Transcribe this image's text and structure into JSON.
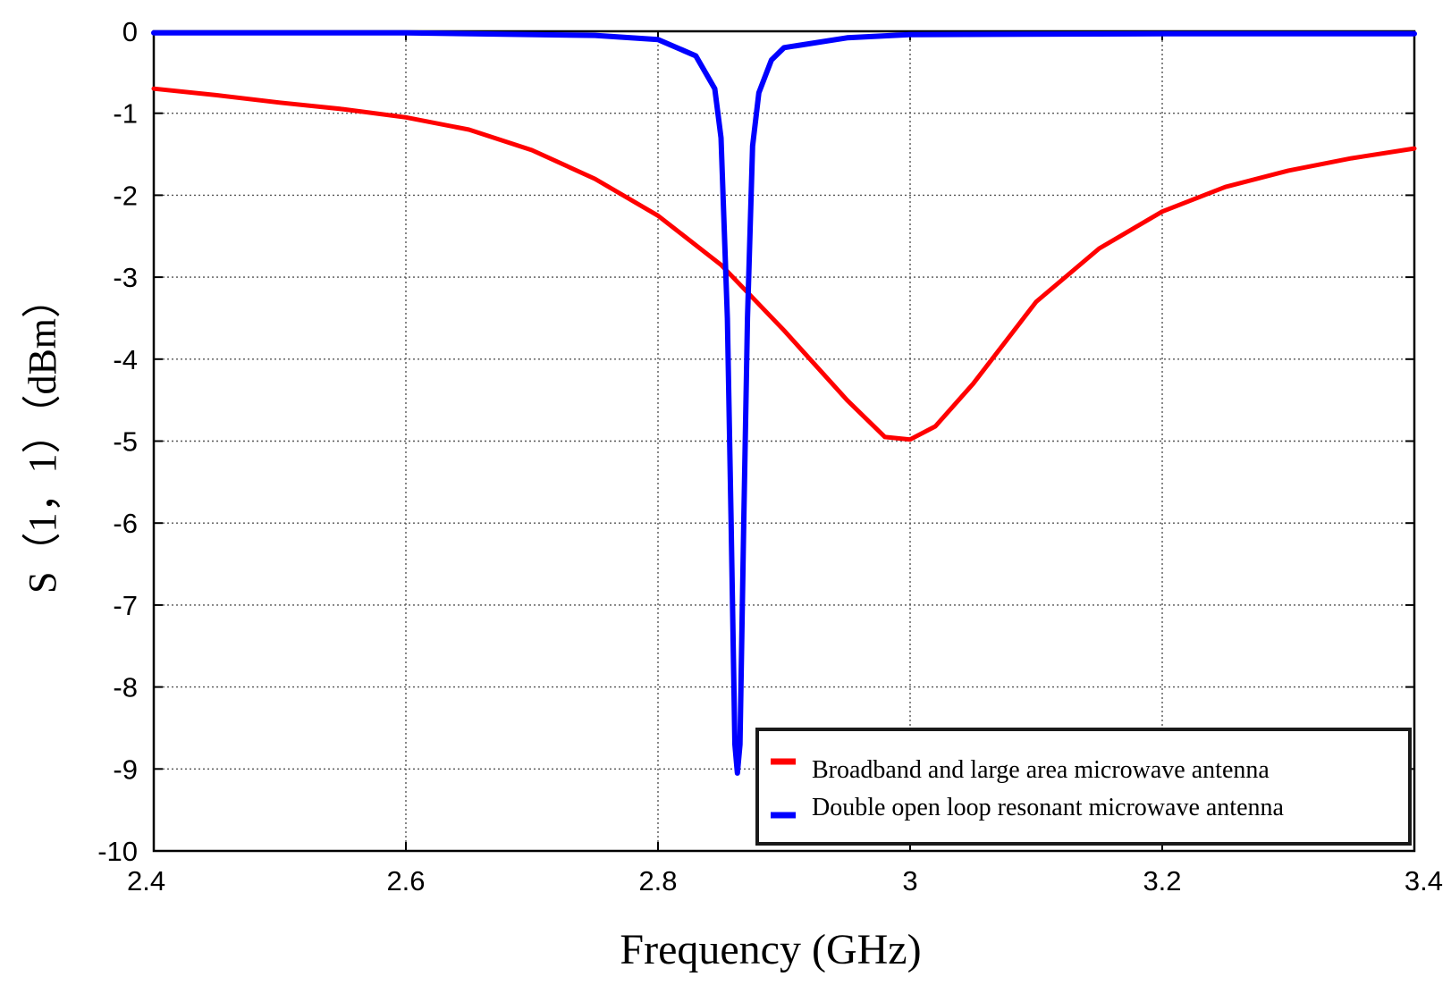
{
  "chart_data": {
    "type": "line",
    "title": "",
    "xlabel": "Frequency (GHz)",
    "ylabel": "S（1，1）（dBm）",
    "xlim": [
      2.4,
      3.4
    ],
    "ylim": [
      -10,
      0
    ],
    "xticks": [
      2.4,
      2.6,
      2.8,
      3.0,
      3.2,
      3.4
    ],
    "xtick_labels": [
      "2.4",
      "2.6",
      "2.8",
      "3",
      "3.2",
      "3.4"
    ],
    "yticks": [
      0,
      -1,
      -2,
      -3,
      -4,
      -5,
      -6,
      -7,
      -8,
      -9,
      -10
    ],
    "ytick_labels": [
      "0",
      "-1",
      "-2",
      "-3",
      "-4",
      "-5",
      "-6",
      "-7",
      "-8",
      "-9",
      "-10"
    ],
    "grid": true,
    "legend_position": "bottom-right",
    "series": [
      {
        "name": "Broadband and large area microwave antenna",
        "color": "#ff0000",
        "x": [
          2.4,
          2.45,
          2.5,
          2.55,
          2.6,
          2.65,
          2.7,
          2.75,
          2.8,
          2.85,
          2.9,
          2.95,
          2.98,
          3.0,
          3.02,
          3.05,
          3.1,
          3.15,
          3.2,
          3.25,
          3.3,
          3.35,
          3.4
        ],
        "y": [
          -0.7,
          -0.78,
          -0.87,
          -0.95,
          -1.05,
          -1.2,
          -1.45,
          -1.8,
          -2.25,
          -2.85,
          -3.65,
          -4.5,
          -4.95,
          -4.98,
          -4.82,
          -4.3,
          -3.3,
          -2.65,
          -2.2,
          -1.9,
          -1.7,
          -1.55,
          -1.43
        ]
      },
      {
        "name": "Double open loop resonant microwave antenna",
        "color": "#0000ff",
        "x": [
          2.4,
          2.6,
          2.75,
          2.8,
          2.83,
          2.845,
          2.85,
          2.855,
          2.858,
          2.861,
          2.863,
          2.865,
          2.868,
          2.871,
          2.875,
          2.88,
          2.89,
          2.9,
          2.95,
          3.0,
          3.2,
          3.4
        ],
        "y": [
          -0.02,
          -0.02,
          -0.05,
          -0.1,
          -0.3,
          -0.7,
          -1.3,
          -3.5,
          -6.0,
          -8.7,
          -9.05,
          -8.7,
          -6.0,
          -3.5,
          -1.4,
          -0.75,
          -0.35,
          -0.2,
          -0.08,
          -0.04,
          -0.03,
          -0.03
        ]
      }
    ]
  }
}
